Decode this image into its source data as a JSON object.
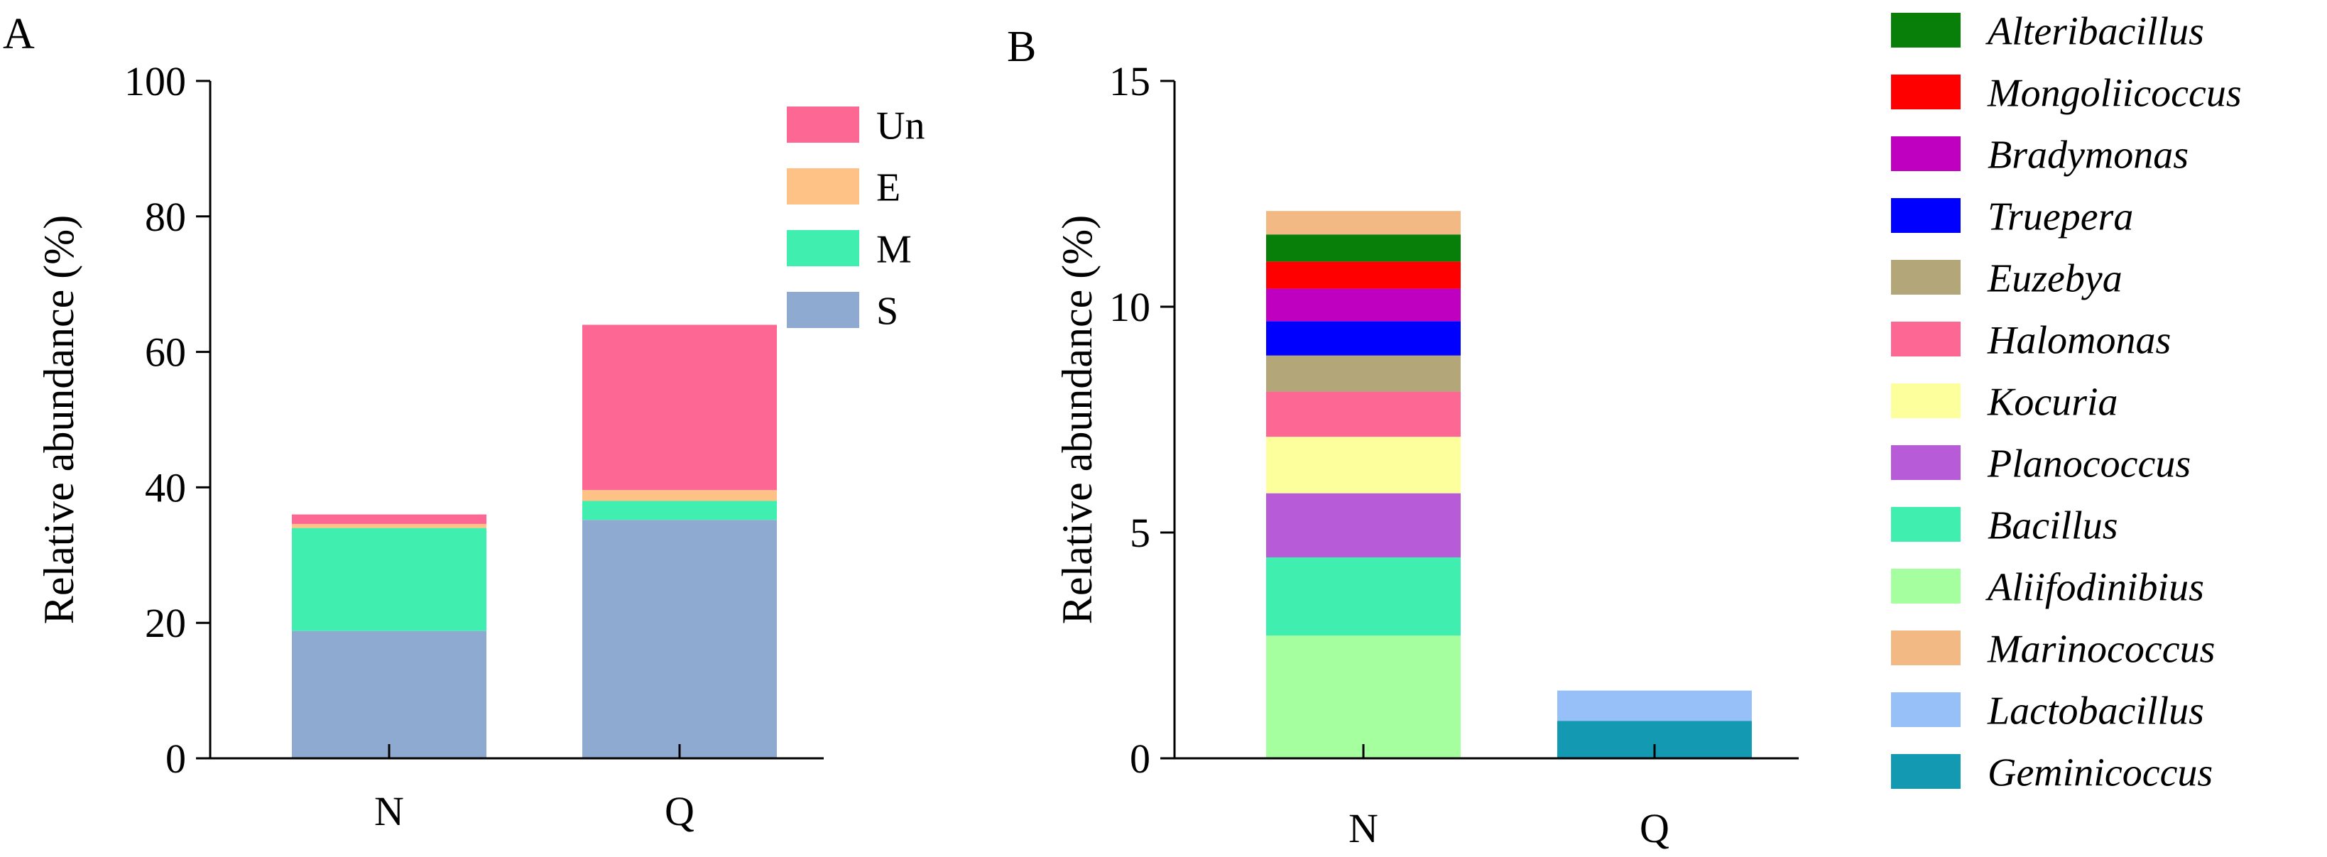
{
  "chart_data": [
    {
      "panel": "A",
      "type": "bar",
      "stacked": true,
      "categories": [
        "N",
        "Q"
      ],
      "ylabel": "Relative abundance (%)",
      "xlabel": "",
      "ylim": [
        0,
        100
      ],
      "yticks": [
        0,
        20,
        40,
        60,
        80,
        100
      ],
      "legend_position": "top-right",
      "legend_order": [
        "Un",
        "E",
        "M",
        "S"
      ],
      "series": [
        {
          "name": "S",
          "color": "#8faad1",
          "values": [
            18.8,
            35.2
          ]
        },
        {
          "name": "M",
          "color": "#40efb0",
          "values": [
            15.2,
            2.8
          ]
        },
        {
          "name": "E",
          "color": "#ffc286",
          "values": [
            0.6,
            1.6
          ]
        },
        {
          "name": "Un",
          "color": "#fc6893",
          "values": [
            1.4,
            24.4
          ]
        }
      ]
    },
    {
      "panel": "B",
      "type": "bar",
      "stacked": true,
      "categories": [
        "N",
        "Q"
      ],
      "ylabel": "Relative abundance (%)",
      "xlabel": "",
      "ylim": [
        0,
        15
      ],
      "yticks": [
        0,
        5,
        10,
        15
      ],
      "legend_position": "right",
      "legend_italic": true,
      "legend_order": [
        "Alteribacillus",
        "Mongoliicoccus",
        "Bradymonas",
        "Truepera",
        "Euzebya",
        "Halomonas",
        "Kocuria",
        "Planococcus",
        "Bacillus",
        "Aliifodinibius",
        "Marinococcus",
        "Lactobacillus",
        "Geminicoccus"
      ],
      "series": [
        {
          "name": "Geminicoccus",
          "color": "#1399b2",
          "values": [
            0,
            0.83
          ]
        },
        {
          "name": "Lactobacillus",
          "color": "#97c0f8",
          "values": [
            0,
            0.67
          ]
        },
        {
          "name": "Aliifodinibius",
          "color": "#a6ff9e",
          "values": [
            2.72,
            0
          ]
        },
        {
          "name": "Bacillus",
          "color": "#40efb0",
          "values": [
            1.73,
            0
          ]
        },
        {
          "name": "Planococcus",
          "color": "#b75bd8",
          "values": [
            1.42,
            0
          ]
        },
        {
          "name": "Kocuria",
          "color": "#fdff9d",
          "values": [
            1.25,
            0
          ]
        },
        {
          "name": "Halomonas",
          "color": "#fc6893",
          "values": [
            1.0,
            0
          ]
        },
        {
          "name": "Euzebya",
          "color": "#b3a77a",
          "values": [
            0.8,
            0
          ]
        },
        {
          "name": "Truepera",
          "color": "#0000ff",
          "values": [
            0.76,
            0
          ]
        },
        {
          "name": "Bradymonas",
          "color": "#c000c0",
          "values": [
            0.72,
            0
          ]
        },
        {
          "name": "Mongoliicoccus",
          "color": "#ff0000",
          "values": [
            0.6,
            0
          ]
        },
        {
          "name": "Alteribacillus",
          "color": "#087f08",
          "values": [
            0.6,
            0
          ]
        },
        {
          "name": "Marinococcus",
          "color": "#f3b985",
          "values": [
            0.52,
            0
          ]
        }
      ]
    }
  ]
}
